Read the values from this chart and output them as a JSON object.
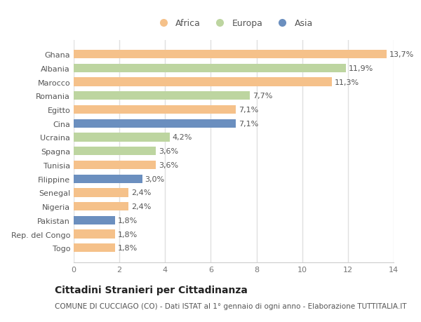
{
  "countries": [
    "Ghana",
    "Albania",
    "Marocco",
    "Romania",
    "Egitto",
    "Cina",
    "Ucraina",
    "Spagna",
    "Tunisia",
    "Filippine",
    "Senegal",
    "Nigeria",
    "Pakistan",
    "Rep. del Congo",
    "Togo"
  ],
  "values": [
    13.7,
    11.9,
    11.3,
    7.7,
    7.1,
    7.1,
    4.2,
    3.6,
    3.6,
    3.0,
    2.4,
    2.4,
    1.8,
    1.8,
    1.8
  ],
  "labels": [
    "13,7%",
    "11,9%",
    "11,3%",
    "7,7%",
    "7,1%",
    "7,1%",
    "4,2%",
    "3,6%",
    "3,6%",
    "3,0%",
    "2,4%",
    "2,4%",
    "1,8%",
    "1,8%",
    "1,8%"
  ],
  "categories": [
    "Africa",
    "Europa",
    "Asia"
  ],
  "bar_colors": [
    "#f5c18a",
    "#bdd5a0",
    "#f5c18a",
    "#bdd5a0",
    "#f5c18a",
    "#6b8fbf",
    "#bdd5a0",
    "#bdd5a0",
    "#f5c18a",
    "#6b8fbf",
    "#f5c18a",
    "#f5c18a",
    "#6b8fbf",
    "#f5c18a",
    "#f5c18a"
  ],
  "legend_colors": {
    "Africa": "#f5c18a",
    "Europa": "#bdd5a0",
    "Asia": "#6b8fbf"
  },
  "title": "Cittadini Stranieri per Cittadinanza",
  "subtitle": "COMUNE DI CUCCIAGO (CO) - Dati ISTAT al 1° gennaio di ogni anno - Elaborazione TUTTITALIA.IT",
  "xlim": [
    0,
    14
  ],
  "xticks": [
    0,
    2,
    4,
    6,
    8,
    10,
    12,
    14
  ],
  "background_color": "#ffffff",
  "grid_color": "#e0e0e0",
  "bar_height": 0.62,
  "label_fontsize": 8,
  "tick_fontsize": 8,
  "title_fontsize": 10,
  "subtitle_fontsize": 7.5
}
